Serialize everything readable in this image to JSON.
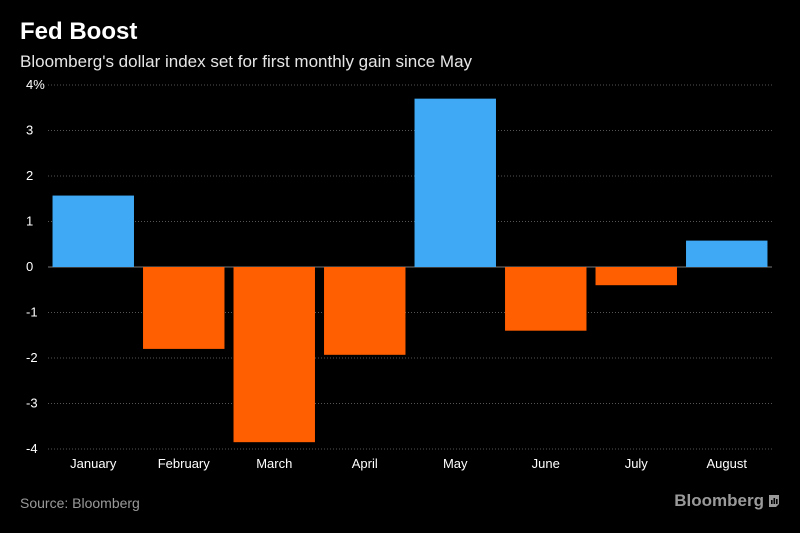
{
  "header": {
    "title": "Fed Boost",
    "subtitle": "Bloomberg's dollar index set for first monthly gain since May"
  },
  "footer": {
    "source": "Source: Bloomberg",
    "brand": "Bloomberg"
  },
  "colors": {
    "positive": "#3fa9f5",
    "negative": "#ff5f00",
    "background": "#000000",
    "grid": "#555555"
  },
  "chart_data": {
    "type": "bar",
    "title": "Fed Boost",
    "subtitle": "Bloomberg's dollar index set for first monthly gain since May",
    "xlabel": "",
    "ylabel": "",
    "y_unit": "%",
    "categories": [
      "January",
      "February",
      "March",
      "April",
      "May",
      "June",
      "July",
      "August"
    ],
    "values": [
      1.57,
      -1.8,
      -3.85,
      -1.93,
      3.7,
      -1.4,
      -0.4,
      0.58
    ],
    "ylim": [
      -4,
      4
    ],
    "yticks": [
      -4,
      -3,
      -2,
      -1,
      0,
      1,
      2,
      3,
      4
    ],
    "ytick_labels": [
      "-4",
      "-3",
      "-2",
      "-1",
      "0",
      "1",
      "2",
      "3",
      "4%"
    ],
    "grid": true
  }
}
